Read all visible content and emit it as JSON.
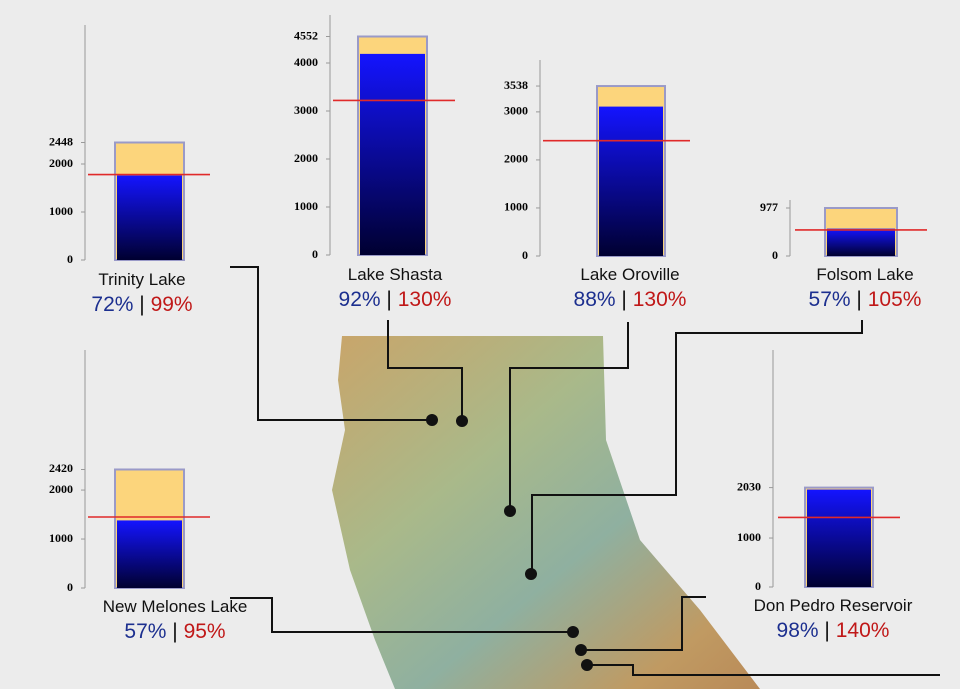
{
  "chart_data": [
    {
      "type": "bar",
      "title": "Trinity Lake",
      "capacity": 2448,
      "storage": 1760,
      "average": 1780,
      "ylim": [
        0,
        4896
      ],
      "yticks": [
        0,
        1000,
        2000,
        2448
      ],
      "values": [
        72,
        99
      ],
      "value_labels": [
        "72%",
        "99%"
      ],
      "separator": "|",
      "capacity_color": "#fcd57c",
      "storage_color": "#1414ff",
      "average_color": "#e02a2a"
    },
    {
      "type": "bar",
      "title": "Lake Shasta",
      "capacity": 4552,
      "storage": 4190,
      "average": 3220,
      "ylim": [
        0,
        5000
      ],
      "yticks": [
        0,
        1000,
        2000,
        3000,
        4000,
        4552
      ],
      "values": [
        92,
        130
      ],
      "value_labels": [
        "92%",
        "130%"
      ],
      "separator": "|",
      "capacity_color": "#fcd57c",
      "storage_color": "#1414ff",
      "average_color": "#e02a2a"
    },
    {
      "type": "bar",
      "title": "Lake Oroville",
      "capacity": 3538,
      "storage": 3110,
      "average": 2400,
      "ylim": [
        0,
        4080
      ],
      "yticks": [
        0,
        1000,
        2000,
        3000,
        3538
      ],
      "values": [
        88,
        130
      ],
      "value_labels": [
        "88%",
        "130%"
      ],
      "separator": "|",
      "capacity_color": "#fcd57c",
      "storage_color": "#1414ff",
      "average_color": "#e02a2a"
    },
    {
      "type": "bar",
      "title": "Folsom Lake",
      "capacity": 977,
      "storage": 557,
      "average": 530,
      "ylim": [
        0,
        1140
      ],
      "yticks": [
        0,
        977
      ],
      "values": [
        57,
        105
      ],
      "value_labels": [
        "57%",
        "105%"
      ],
      "separator": "|",
      "capacity_color": "#fcd57c",
      "storage_color": "#1414ff",
      "average_color": "#e02a2a"
    },
    {
      "type": "bar",
      "title": "New Melones Lake",
      "capacity": 2420,
      "storage": 1380,
      "average": 1450,
      "ylim": [
        0,
        4860
      ],
      "yticks": [
        0,
        1000,
        2000,
        2420
      ],
      "values": [
        57,
        95
      ],
      "value_labels": [
        "57%",
        "95%"
      ],
      "separator": "|",
      "capacity_color": "#fcd57c",
      "storage_color": "#1414ff",
      "average_color": "#e02a2a"
    },
    {
      "type": "bar",
      "title": "Don Pedro Reservoir",
      "capacity": 2030,
      "storage": 1990,
      "average": 1420,
      "ylim": [
        0,
        4840
      ],
      "yticks": [
        0,
        1000,
        2030
      ],
      "values": [
        98,
        140
      ],
      "value_labels": [
        "98%",
        "140%"
      ],
      "separator": "|",
      "capacity_color": "#fcd57c",
      "storage_color": "#1414ff",
      "average_color": "#e02a2a"
    }
  ]
}
